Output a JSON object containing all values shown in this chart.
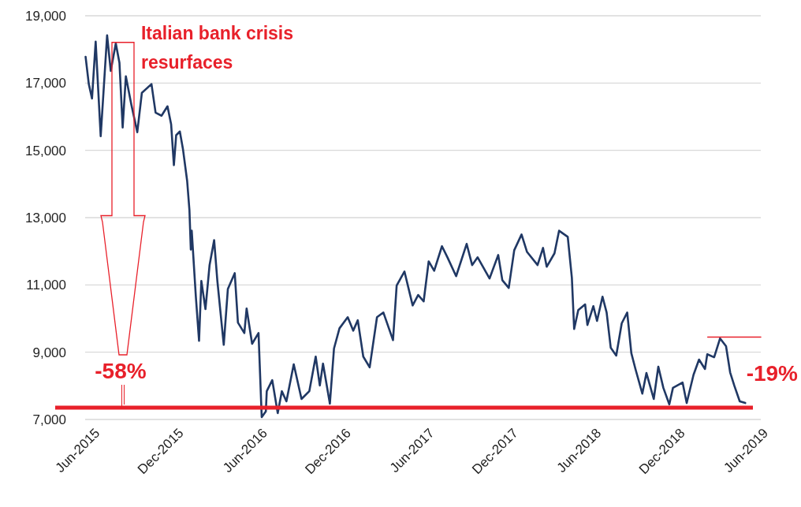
{
  "chart_data": {
    "type": "line",
    "x": [
      "2015-05-17",
      "2015-05-24",
      "2015-05-31",
      "2015-06-08",
      "2015-06-19",
      "2015-07-03",
      "2015-07-11",
      "2015-07-22",
      "2015-07-30",
      "2015-08-06",
      "2015-08-13",
      "2015-08-25",
      "2015-09-07",
      "2015-09-17",
      "2015-10-08",
      "2015-10-17",
      "2015-10-30",
      "2015-11-12",
      "2015-11-20",
      "2015-11-26",
      "2015-12-01",
      "2015-12-09",
      "2015-12-16",
      "2015-12-25",
      "2015-12-30",
      "2016-01-02",
      "2016-01-04",
      "2016-01-13",
      "2016-01-20",
      "2016-01-25",
      "2016-02-03",
      "2016-02-12",
      "2016-02-22",
      "2016-02-29",
      "2016-03-14",
      "2016-03-23",
      "2016-04-07",
      "2016-04-14",
      "2016-04-28",
      "2016-05-03",
      "2016-05-15",
      "2016-05-29",
      "2016-06-05",
      "2016-06-14",
      "2016-06-16",
      "2016-06-28",
      "2016-07-10",
      "2016-07-19",
      "2016-07-29",
      "2016-08-14",
      "2016-08-31",
      "2016-09-17",
      "2016-10-01",
      "2016-10-10",
      "2016-10-17",
      "2016-11-01",
      "2016-11-10",
      "2016-11-22",
      "2016-12-10",
      "2016-12-22",
      "2017-01-01",
      "2017-01-13",
      "2017-01-27",
      "2017-02-12",
      "2017-02-26",
      "2017-03-19",
      "2017-03-27",
      "2017-04-13",
      "2017-05-01",
      "2017-05-13",
      "2017-05-25",
      "2017-06-05",
      "2017-06-17",
      "2017-07-04",
      "2017-07-16",
      "2017-08-04",
      "2017-08-27",
      "2017-09-08",
      "2017-09-20",
      "2017-10-16",
      "2017-11-04",
      "2017-11-13",
      "2017-11-27",
      "2017-12-09",
      "2017-12-25",
      "2018-01-06",
      "2018-01-29",
      "2018-02-10",
      "2018-02-18",
      "2018-03-07",
      "2018-03-17",
      "2018-04-05",
      "2018-04-14",
      "2018-04-19",
      "2018-04-28",
      "2018-05-13",
      "2018-05-18",
      "2018-05-31",
      "2018-06-08",
      "2018-06-20",
      "2018-06-29",
      "2018-07-08",
      "2018-07-20",
      "2018-08-01",
      "2018-08-13",
      "2018-08-22",
      "2018-08-31",
      "2018-09-15",
      "2018-09-24",
      "2018-10-10",
      "2018-10-20",
      "2018-10-31",
      "2018-11-13",
      "2018-11-21",
      "2018-12-12",
      "2018-12-21",
      "2019-01-05",
      "2019-01-17",
      "2019-01-30",
      "2019-02-04",
      "2019-02-19",
      "2019-03-04",
      "2019-03-17",
      "2019-03-26",
      "2019-04-04",
      "2019-04-16",
      "2019-04-28"
    ],
    "series": [
      {
        "color": "#203864",
        "values": [
          17780,
          16970,
          16540,
          18230,
          15420,
          18420,
          17360,
          18180,
          17600,
          15680,
          17200,
          16360,
          15540,
          16710,
          16970,
          16120,
          16030,
          16310,
          15770,
          14560,
          15450,
          15560,
          15020,
          14090,
          13220,
          12050,
          12610,
          10650,
          9340,
          11120,
          10280,
          11590,
          12330,
          11120,
          9220,
          10880,
          11350,
          9880,
          9570,
          10300,
          9250,
          9570,
          7070,
          7240,
          7840,
          8170,
          7190,
          7840,
          7540,
          8640,
          7610,
          7840,
          8870,
          8010,
          8660,
          7470,
          9110,
          9710,
          10040,
          9640,
          9950,
          8870,
          8550,
          10040,
          10180,
          9360,
          10980,
          11400,
          10390,
          10700,
          10510,
          11700,
          11420,
          12150,
          11820,
          11260,
          12220,
          11590,
          11820,
          11190,
          11890,
          11140,
          10910,
          12030,
          12500,
          11980,
          11590,
          12100,
          11540,
          11940,
          12610,
          12430,
          11210,
          9690,
          10250,
          10420,
          9810,
          10370,
          9930,
          10650,
          10180,
          9130,
          8900,
          9860,
          10180,
          8970,
          8500,
          7770,
          8380,
          7610,
          8570,
          7940,
          7450,
          7940,
          8100,
          7490,
          8330,
          8780,
          8500,
          8940,
          8850,
          9410,
          9180,
          8400,
          8010,
          7540,
          7490
        ]
      },
      {
        "type": "line",
        "color": "#e8202a",
        "x": [
          "2019-02-05",
          "2019-06-01"
        ],
        "values": [
          9450,
          9450
        ]
      }
    ],
    "xlim": [
      "2015-05-16",
      "2019-06-01"
    ],
    "xticks": [
      {
        "value": "2015-06-01",
        "label": "Jun-2015"
      },
      {
        "value": "2015-12-01",
        "label": "Dec-2015"
      },
      {
        "value": "2016-06-01",
        "label": "Jun-2016"
      },
      {
        "value": "2016-12-01",
        "label": "Dec-2016"
      },
      {
        "value": "2017-06-01",
        "label": "Jun-2017"
      },
      {
        "value": "2017-12-01",
        "label": "Dec-2017"
      },
      {
        "value": "2018-06-01",
        "label": "Jun-2018"
      },
      {
        "value": "2018-12-01",
        "label": "Dec-2018"
      },
      {
        "value": "2019-06-01",
        "label": "Jun-2019"
      }
    ],
    "ylim": [
      7000,
      19000
    ],
    "yticks": [
      {
        "value": 7000,
        "label": "7,000"
      },
      {
        "value": 9000,
        "label": "9,000"
      },
      {
        "value": 11000,
        "label": "11,000"
      },
      {
        "value": 13000,
        "label": "13,000"
      },
      {
        "value": 15000,
        "label": "15,000"
      },
      {
        "value": 17000,
        "label": "17,000"
      },
      {
        "value": 19000,
        "label": "19,000"
      }
    ],
    "grid": "y",
    "ref_lines": [
      {
        "axis": "y",
        "value": 7350,
        "color": "#e8202a"
      }
    ],
    "annotations": [
      "Italian bank crisis resurfaces",
      "-58%",
      "-19%"
    ]
  }
}
